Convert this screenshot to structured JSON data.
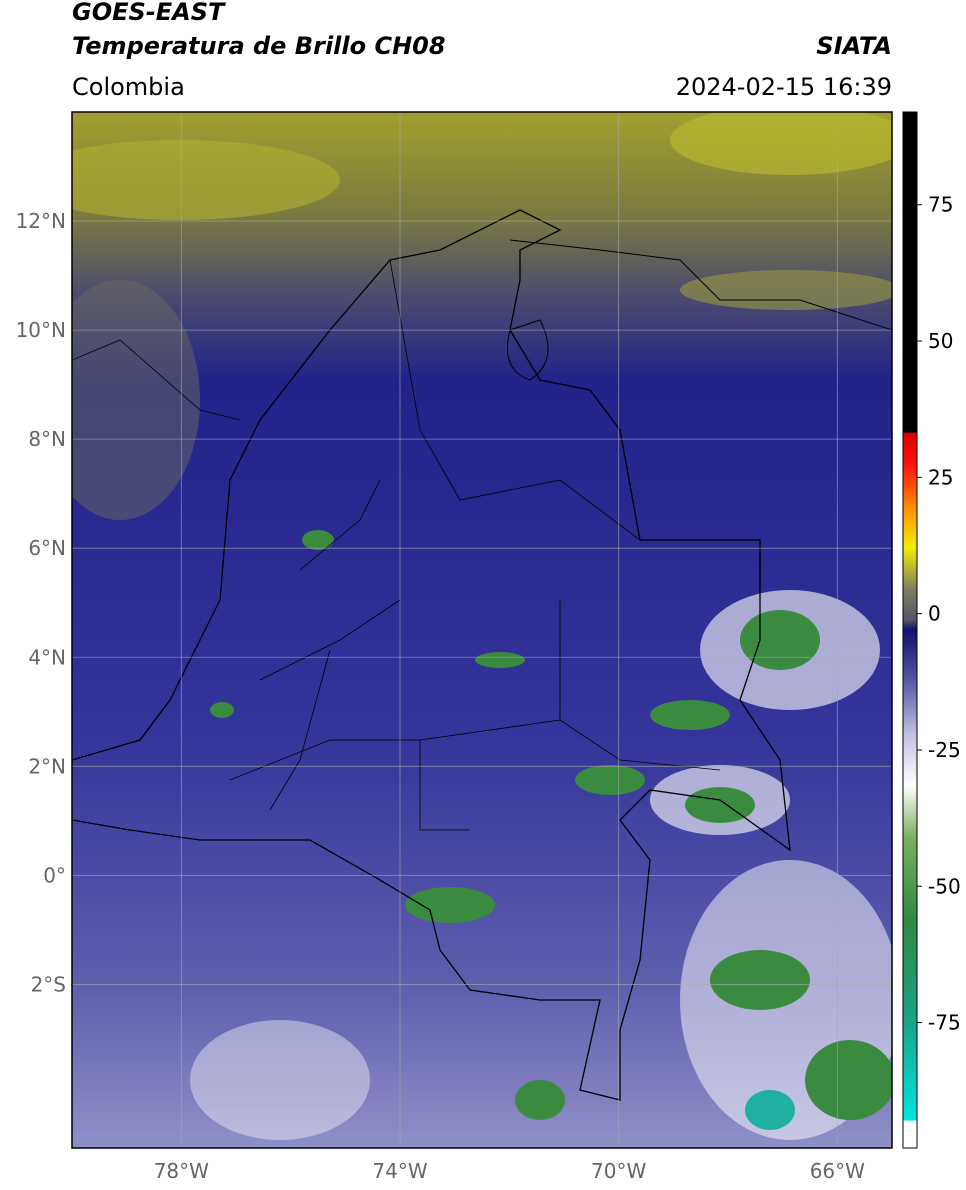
{
  "header": {
    "title": "GOES-EAST",
    "subtitle": "Temperatura de Brillo CH08",
    "organization": "SIATA",
    "region": "Colombia",
    "datetime": "2024-02-15 16:39"
  },
  "map": {
    "lon_range": [
      -80,
      -65
    ],
    "lat_range": [
      -5,
      14
    ],
    "lat_ticks": [
      {
        "value": 12,
        "label": "12°N"
      },
      {
        "value": 10,
        "label": "10°N"
      },
      {
        "value": 8,
        "label": "8°N"
      },
      {
        "value": 6,
        "label": "6°N"
      },
      {
        "value": 4,
        "label": "4°N"
      },
      {
        "value": 2,
        "label": "2°N"
      },
      {
        "value": 0,
        "label": "0°"
      },
      {
        "value": -2,
        "label": "2°S"
      }
    ],
    "lon_ticks": [
      {
        "value": -78,
        "label": "78°W"
      },
      {
        "value": -74,
        "label": "74°W"
      },
      {
        "value": -70,
        "label": "70°W"
      },
      {
        "value": -66,
        "label": "66°W"
      }
    ],
    "grid": true
  },
  "colorbar": {
    "range": [
      -98,
      92
    ],
    "ticks": [
      75,
      50,
      25,
      0,
      -25,
      -50,
      -75
    ]
  }
}
